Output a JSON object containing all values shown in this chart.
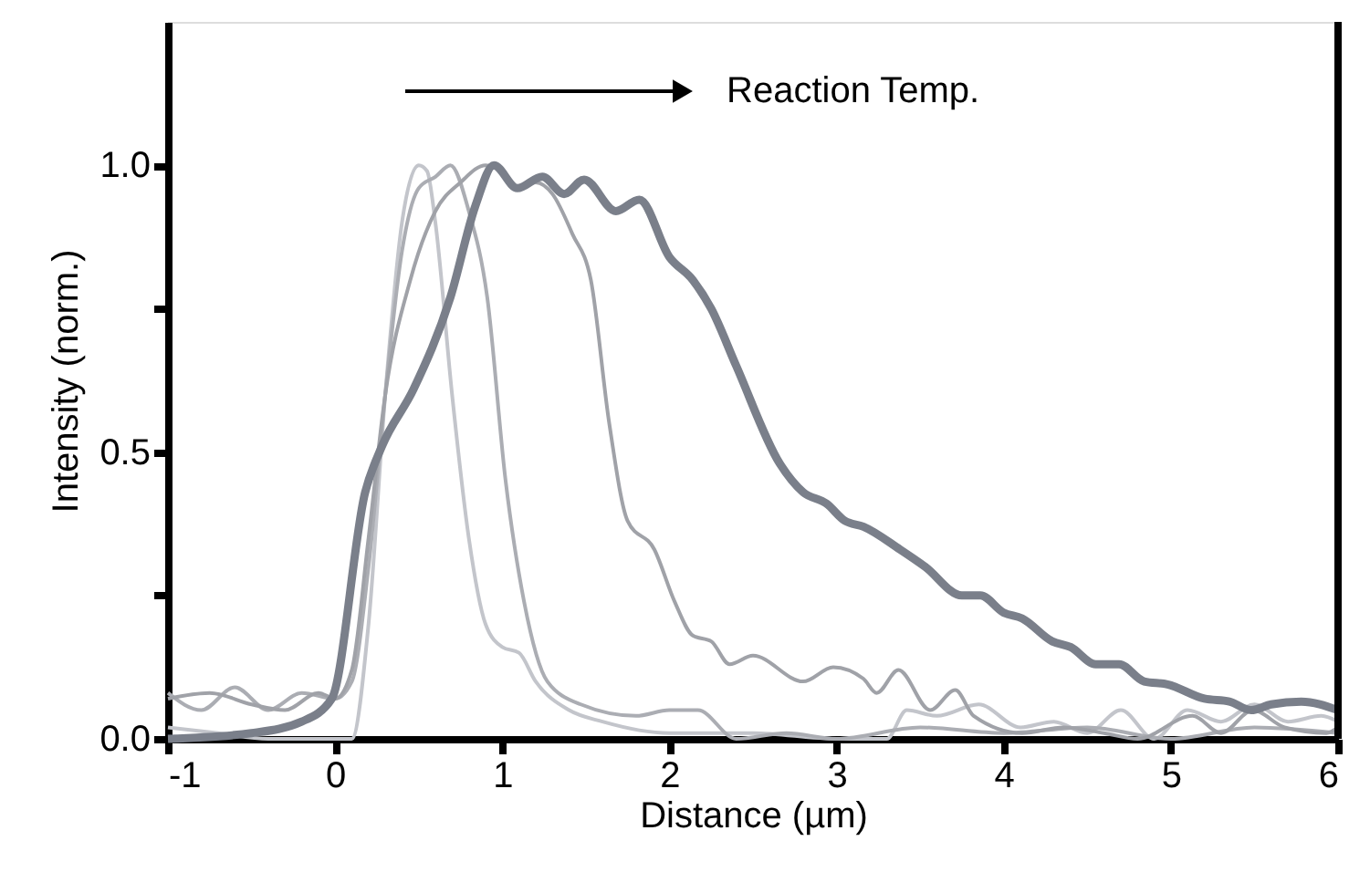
{
  "chart_data": {
    "type": "line",
    "xlabel": "Distance (µm)",
    "ylabel": "Intensity (norm.)",
    "annotations": [
      "Reaction Temp."
    ],
    "xlim": [
      -1,
      6
    ],
    "xticks": [
      {
        "value": -1,
        "label": "-1"
      },
      {
        "value": 0,
        "label": "0"
      },
      {
        "value": 1,
        "label": "1"
      },
      {
        "value": 2,
        "label": "2"
      },
      {
        "value": 3,
        "label": "3"
      },
      {
        "value": 4,
        "label": "4"
      },
      {
        "value": 5,
        "label": "5"
      },
      {
        "value": 6,
        "label": "6"
      }
    ],
    "ylim": [
      0,
      1.25
    ],
    "yticks": [
      {
        "value": 0,
        "label": "0.0"
      },
      {
        "value": 0.25,
        "label": null
      },
      {
        "value": 0.5,
        "label": "0.5"
      },
      {
        "value": 0.75,
        "label": null
      },
      {
        "value": 1,
        "label": "1.0"
      }
    ],
    "grid": false,
    "marker": "none",
    "line_style": "solid",
    "series": [
      {
        "color": "#c3c5cb",
        "x": [
          -1,
          -0.7,
          -0.4,
          0.1,
          0.2,
          0.3,
          0.4,
          0.5,
          0.55,
          0.6,
          0.7,
          0.8,
          0.9,
          1.0,
          1.1,
          1.2,
          1.4,
          1.6,
          2.0,
          2.5,
          3.0,
          3.3,
          3.42,
          3.6,
          3.85,
          4.1,
          4.3,
          4.5,
          4.7,
          4.9,
          5.1,
          5.3,
          5.5,
          5.7,
          5.9,
          6
        ],
        "values": [
          0.02,
          0.01,
          0.0,
          0.0,
          0.2,
          0.6,
          0.9,
          1.0,
          0.99,
          0.9,
          0.6,
          0.35,
          0.2,
          0.16,
          0.15,
          0.1,
          0.05,
          0.03,
          0.01,
          0.01,
          0.0,
          0.0,
          0.05,
          0.04,
          0.06,
          0.02,
          0.03,
          0.01,
          0.05,
          0.0,
          0.05,
          0.03,
          0.06,
          0.03,
          0.04,
          0.03
        ]
      },
      {
        "color": "#abadb3",
        "x": [
          -1,
          -0.8,
          -0.6,
          -0.4,
          -0.2,
          0,
          0.1,
          0.2,
          0.3,
          0.4,
          0.5,
          0.6,
          0.69,
          0.8,
          0.91,
          1.02,
          1.13,
          1.27,
          1.47,
          1.8,
          2.0,
          2.17,
          2.4,
          2.7,
          3.0,
          3.5,
          4.0,
          4.5,
          5.0,
          5.5,
          6
        ],
        "values": [
          0.08,
          0.05,
          0.09,
          0.05,
          0.08,
          0.07,
          0.1,
          0.3,
          0.6,
          0.85,
          0.96,
          0.98,
          1.0,
          0.92,
          0.77,
          0.45,
          0.24,
          0.1,
          0.06,
          0.04,
          0.05,
          0.05,
          0.0,
          0.01,
          0.0,
          0.02,
          0.01,
          0.02,
          0.0,
          0.02,
          0.01
        ]
      },
      {
        "color": "#a0a2a8",
        "x": [
          -1,
          -0.75,
          -0.5,
          -0.3,
          -0.1,
          0,
          0.1,
          0.2,
          0.3,
          0.45,
          0.6,
          0.75,
          0.9,
          1.0,
          1.1,
          1.2,
          1.3,
          1.42,
          1.53,
          1.64,
          1.75,
          1.91,
          2.03,
          2.14,
          2.25,
          2.36,
          2.5,
          2.8,
          2.98,
          3.16,
          3.24,
          3.37,
          3.56,
          3.71,
          3.82,
          4.11,
          4.36,
          4.6,
          4.8,
          5.13,
          5.3,
          5.49,
          5.68,
          5.93,
          6
        ],
        "values": [
          0.07,
          0.08,
          0.06,
          0.05,
          0.08,
          0.07,
          0.12,
          0.35,
          0.6,
          0.8,
          0.92,
          0.97,
          1.0,
          0.99,
          0.96,
          0.97,
          0.95,
          0.88,
          0.8,
          0.55,
          0.38,
          0.33,
          0.24,
          0.18,
          0.17,
          0.13,
          0.145,
          0.1,
          0.125,
          0.105,
          0.08,
          0.12,
          0.05,
          0.085,
          0.04,
          0.01,
          0.02,
          0.01,
          0.0,
          0.04,
          0.01,
          0.05,
          0.02,
          0.01,
          0.02
        ]
      },
      {
        "color": "#7a7f8a",
        "x": [
          -1,
          -0.5,
          -0.2,
          -0.02,
          0.18,
          0.28,
          0.47,
          0.69,
          0.84,
          0.95,
          1.09,
          1.24,
          1.37,
          1.49,
          1.68,
          1.82,
          2.0,
          2.14,
          2.25,
          2.4,
          2.66,
          2.8,
          2.94,
          3.05,
          3.16,
          3.38,
          3.53,
          3.75,
          3.86,
          4.0,
          4.11,
          4.29,
          4.4,
          4.55,
          4.69,
          4.84,
          4.98,
          5.2,
          5.35,
          5.48,
          5.6,
          5.78,
          6.0
        ],
        "values": [
          0.0,
          0.01,
          0.03,
          0.07,
          0.43,
          0.51,
          0.61,
          0.77,
          0.93,
          1.0,
          0.96,
          0.98,
          0.95,
          0.975,
          0.92,
          0.94,
          0.84,
          0.8,
          0.75,
          0.65,
          0.48,
          0.43,
          0.41,
          0.38,
          0.37,
          0.33,
          0.3,
          0.25,
          0.25,
          0.22,
          0.21,
          0.17,
          0.16,
          0.13,
          0.13,
          0.1,
          0.095,
          0.07,
          0.065,
          0.05,
          0.06,
          0.065,
          0.05
        ]
      }
    ]
  }
}
